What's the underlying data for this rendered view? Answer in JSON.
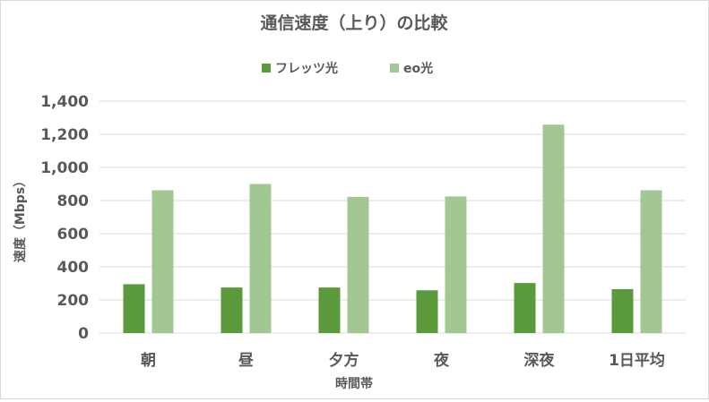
{
  "chart_data": {
    "type": "bar",
    "title": "通信速度（上り）の比較",
    "xlabel": "時間帯",
    "ylabel": "速度（Mbps）",
    "categories": [
      "朝",
      "昼",
      "夕方",
      "夜",
      "深夜",
      "1日平均"
    ],
    "series": [
      {
        "name": "フレッツ光",
        "color": "#5a9a3c",
        "values": [
          295,
          275,
          275,
          258,
          302,
          265
        ]
      },
      {
        "name": "eo光",
        "color": "#a3c793",
        "values": [
          862,
          900,
          822,
          825,
          1258,
          862
        ]
      }
    ],
    "ylim": [
      0,
      1400
    ],
    "yticks": [
      0,
      200,
      400,
      600,
      800,
      1000,
      1200,
      1400
    ],
    "ytick_labels": [
      "0",
      "200",
      "400",
      "600",
      "800",
      "1,000",
      "1,200",
      "1,400"
    ],
    "grid": true,
    "legend_position": "top-center"
  }
}
